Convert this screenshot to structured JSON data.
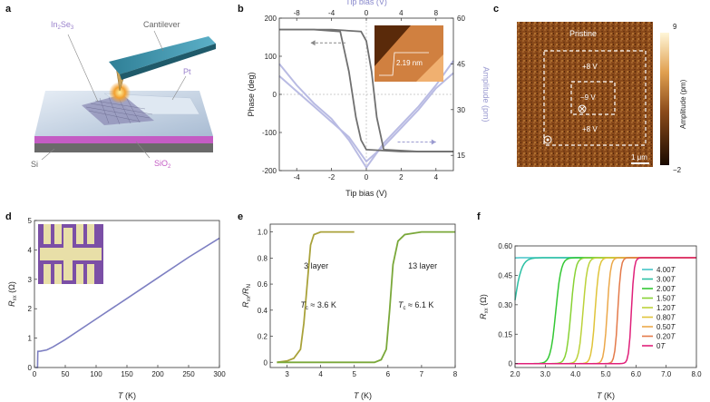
{
  "panel_labels": {
    "a": "a",
    "b": "b",
    "c": "c",
    "d": "d",
    "e": "e",
    "f": "f"
  },
  "panel_a": {
    "labels": {
      "material_main": "In",
      "material_sub1": "2",
      "material_mid": "Se",
      "material_sub2": "3",
      "cantilever": "Cantilever",
      "pt": "Pt",
      "si": "Si",
      "sio2_main": "SiO",
      "sio2_sub": "2"
    },
    "colors": {
      "material": "#b39ddb",
      "cantilever": "#3a8fa8",
      "substrate": "#c9d6e6",
      "sio2": "#c45cc4"
    },
    "icon": "afm-tip-illustration"
  },
  "chart_b": {
    "type": "line",
    "xlabel": "Tip bias (V)",
    "top_xlabel": "Tip bias (V)",
    "ylabel": "Phase (deg)",
    "y2label": "Amplitude (pm)",
    "xticks": [
      -4,
      -2,
      0,
      2,
      4
    ],
    "top_xticks": [
      -8,
      -4,
      0,
      4,
      8
    ],
    "yticks": [
      -200,
      -100,
      0,
      100,
      200
    ],
    "y2ticks": [
      15,
      30,
      45,
      60
    ],
    "xlim": [
      -5,
      5
    ],
    "ylim": [
      -200,
      200
    ],
    "y2lim": [
      10,
      60
    ],
    "inset_label": "2.19 nm",
    "phase_forward": {
      "x": [
        -5,
        -3,
        -1.5,
        -1.0,
        -0.6,
        -0.3,
        0,
        2,
        5
      ],
      "y": [
        170,
        170,
        165,
        60,
        -60,
        -120,
        -145,
        -150,
        -150
      ]
    },
    "phase_reverse": {
      "x": [
        5,
        3,
        1.0,
        0.6,
        0.3,
        0,
        -0.3,
        -2,
        -5
      ],
      "y": [
        -150,
        -150,
        -145,
        -60,
        60,
        140,
        165,
        170,
        170
      ]
    },
    "amplitude_forward": {
      "x": [
        -5,
        -4,
        -3,
        -2,
        -1,
        0,
        1,
        2,
        3,
        4,
        5
      ],
      "y": [
        41,
        36,
        31,
        26,
        21,
        13,
        18,
        24,
        30,
        37,
        42
      ]
    },
    "amplitude_reverse": {
      "x": [
        -5,
        -4,
        -3,
        -2,
        -1,
        0,
        1,
        2,
        3,
        4,
        5
      ],
      "y": [
        45,
        38,
        32,
        27,
        20,
        11,
        19,
        25,
        31,
        38,
        46
      ]
    },
    "colors": {
      "phase": "#707070",
      "amplitude": "#b9bbe3",
      "inset": "#c0703a"
    }
  },
  "panel_c": {
    "title": "Pristine",
    "labels": [
      "+8 V",
      "−9 V",
      "+8 V"
    ],
    "scale_bar": "1 μm",
    "colorbar_ticks": [
      "9",
      "−2"
    ],
    "colorbar_label": "Amplitude (pm)",
    "colors": {
      "map": "#8a4a1a",
      "map_dark": "#4a2208"
    }
  },
  "chart_d": {
    "type": "line",
    "xlabel_main": "T",
    "xlabel_unit": " (K)",
    "ylabel_main": "R",
    "ylabel_sub": "xx",
    "ylabel_unit": " (Ω)",
    "xticks": [
      0,
      50,
      100,
      150,
      200,
      250,
      300
    ],
    "yticks": [
      0,
      1,
      2,
      3,
      4,
      5
    ],
    "xlim": [
      0,
      300
    ],
    "ylim": [
      0,
      5
    ],
    "x": [
      2,
      5,
      5.5,
      6,
      10,
      20,
      30,
      50,
      100,
      150,
      200,
      250,
      300
    ],
    "y": [
      0,
      0,
      0.55,
      0.55,
      0.56,
      0.6,
      0.7,
      0.95,
      1.65,
      2.35,
      3.05,
      3.75,
      4.4
    ],
    "colors": {
      "line": "#7d7fc2",
      "inset": "#7b4fa6",
      "electrode": "#e8dfa8"
    }
  },
  "chart_e": {
    "type": "line",
    "xlabel_main": "T",
    "xlabel_unit": " (K)",
    "ylabel_main": "R",
    "ylabel_sub1": "xx",
    "ylabel_mid": "/R",
    "ylabel_sub2": "N",
    "xticks": [
      3,
      4,
      5,
      6,
      7,
      8
    ],
    "yticks": [
      0,
      0.2,
      0.4,
      0.6,
      0.8,
      1.0
    ],
    "ytick_labels": [
      "0",
      "0.2",
      "0.4",
      "0.6",
      "0.8",
      "1.0"
    ],
    "xlim": [
      2.5,
      8
    ],
    "ylim": [
      -0.04,
      1.06
    ],
    "annotations": {
      "a1": "3 layer",
      "a2_main": "T",
      "a2_sub": "c",
      "a2_rest": " ≈ 3.6 K",
      "a3": "13 layer",
      "a4_main": "T",
      "a4_sub": "c",
      "a4_rest": " ≈ 6.1 K"
    },
    "series": [
      {
        "name": "3 layer",
        "color": "#a9a23a",
        "x": [
          2.7,
          3.0,
          3.2,
          3.4,
          3.5,
          3.6,
          3.7,
          3.8,
          4.0,
          4.5,
          5.0
        ],
        "y": [
          0.0,
          0.01,
          0.03,
          0.1,
          0.3,
          0.6,
          0.9,
          0.98,
          1.0,
          1.0,
          1.0
        ]
      },
      {
        "name": "13 layer",
        "color": "#7aa83a",
        "x": [
          2.7,
          4,
          5,
          5.6,
          5.8,
          5.95,
          6.05,
          6.15,
          6.3,
          6.5,
          7,
          8
        ],
        "y": [
          0,
          0,
          0,
          0.0,
          0.02,
          0.1,
          0.4,
          0.75,
          0.93,
          0.98,
          1.0,
          1.0
        ]
      }
    ]
  },
  "chart_f": {
    "type": "line",
    "xlabel_main": "T",
    "xlabel_unit": " (K)",
    "ylabel_main": "R",
    "ylabel_sub": "xx",
    "ylabel_unit": " (Ω)",
    "xticks": [
      2,
      3,
      4,
      5,
      6,
      7,
      8
    ],
    "xtick_labels": [
      "2.0",
      "3.0",
      "4.0",
      "5.0",
      "6.0",
      "7.0",
      "8.0"
    ],
    "yticks": [
      0,
      0.15,
      0.3,
      0.45,
      0.6
    ],
    "ytick_labels": [
      "0",
      "0.15",
      "0.30",
      "0.45",
      "0.60"
    ],
    "xlim": [
      2,
      8
    ],
    "ylim": [
      -0.02,
      0.6
    ],
    "series": [
      {
        "name": "4.00",
        "color": "#45c4c8",
        "tc": 1.2,
        "w": 0.5
      },
      {
        "name": "3.00",
        "color": "#2cc0a4",
        "tc": 1.95,
        "w": 0.5
      },
      {
        "name": "2.00",
        "color": "#34c834",
        "tc": 3.35,
        "w": 0.35
      },
      {
        "name": "1.50",
        "color": "#88d234",
        "tc": 3.85,
        "w": 0.3
      },
      {
        "name": "1.20",
        "color": "#bcd23a",
        "tc": 4.25,
        "w": 0.28
      },
      {
        "name": "0.80",
        "color": "#e0c43a",
        "tc": 4.65,
        "w": 0.25
      },
      {
        "name": "0.50",
        "color": "#eca84a",
        "tc": 5.05,
        "w": 0.22
      },
      {
        "name": "0.20",
        "color": "#e47a4a",
        "tc": 5.4,
        "w": 0.2
      },
      {
        "name": "0",
        "color": "#e0207a",
        "tc": 5.85,
        "w": 0.18
      }
    ],
    "unit_label": "T"
  }
}
